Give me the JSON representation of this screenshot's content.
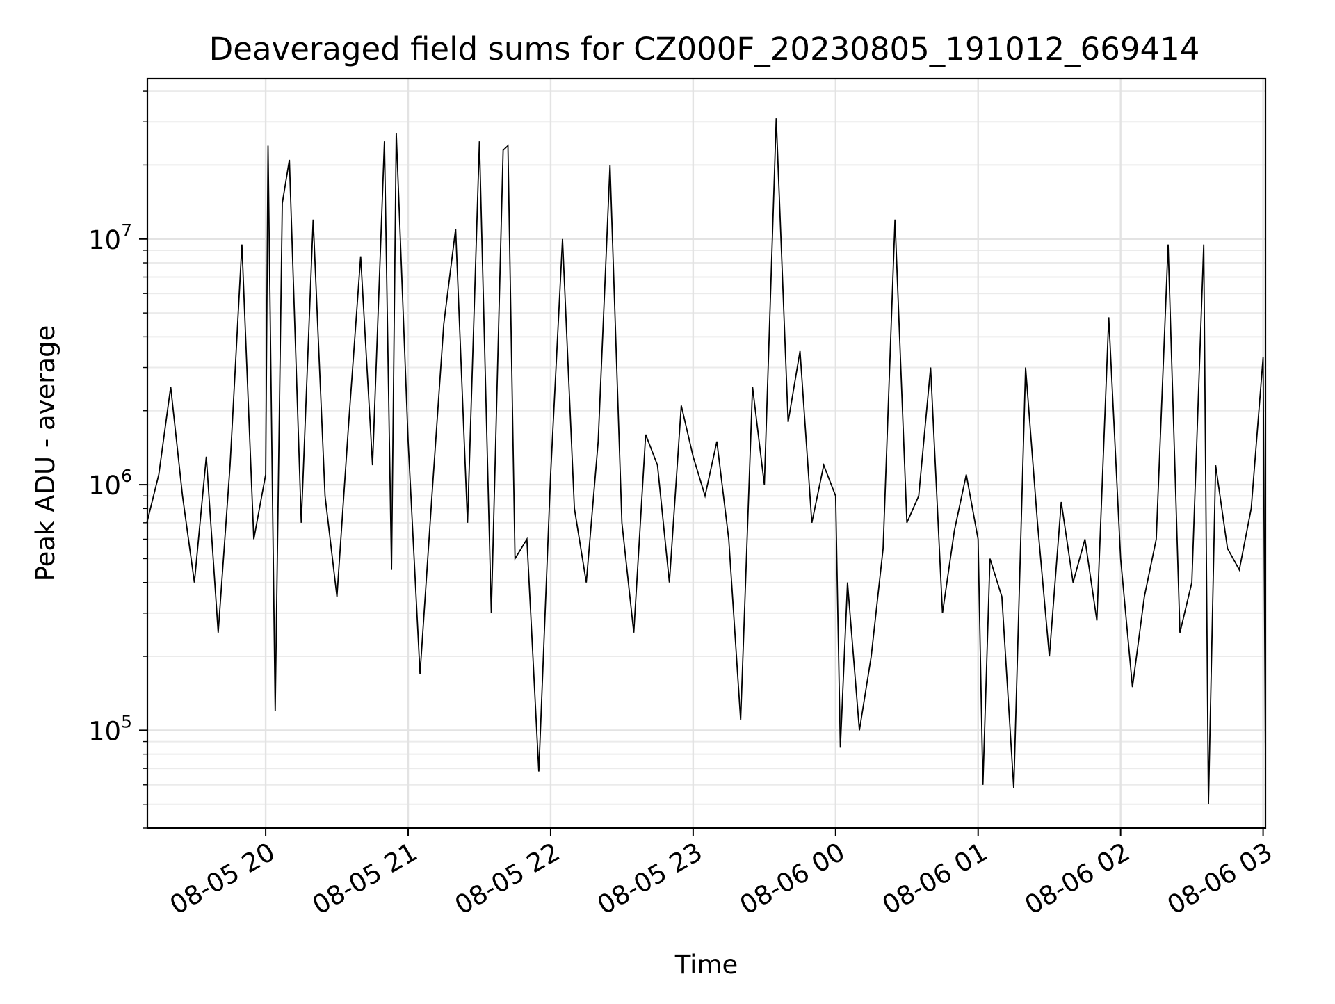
{
  "chart_data": {
    "type": "line",
    "title": "Deaveraged field sums for CZ000F_20230805_191012_669414",
    "xlabel": "Time",
    "ylabel": "Peak ADU - average",
    "y_scale": "log",
    "ylim": [
      40000,
      45000000
    ],
    "xlim": [
      "2023-08-05 19:10:12",
      "2023-08-06 03:01:00"
    ],
    "grid": true,
    "legend": "none",
    "line_color": "#000000",
    "x_ticks": [
      {
        "label": "08-05 20",
        "value": "2023-08-05 20:00"
      },
      {
        "label": "08-05 21",
        "value": "2023-08-05 21:00"
      },
      {
        "label": "08-05 22",
        "value": "2023-08-05 22:00"
      },
      {
        "label": "08-05 23",
        "value": "2023-08-05 23:00"
      },
      {
        "label": "08-06 00",
        "value": "2023-08-06 00:00"
      },
      {
        "label": "08-06 01",
        "value": "2023-08-06 01:00"
      },
      {
        "label": "08-06 02",
        "value": "2023-08-06 02:00"
      },
      {
        "label": "08-06 03",
        "value": "2023-08-06 03:00"
      }
    ],
    "y_ticks": [
      {
        "base": "10",
        "exp": "5",
        "value": 100000
      },
      {
        "base": "10",
        "exp": "6",
        "value": 1000000
      },
      {
        "base": "10",
        "exp": "7",
        "value": 10000000
      }
    ],
    "series": [
      {
        "values": [
          [
            "2023-08-05 19:10",
            700000
          ],
          [
            "2023-08-05 19:15",
            1100000
          ],
          [
            "2023-08-05 19:20",
            2500000
          ],
          [
            "2023-08-05 19:25",
            900000
          ],
          [
            "2023-08-05 19:30",
            400000
          ],
          [
            "2023-08-05 19:35",
            1300000
          ],
          [
            "2023-08-05 19:40",
            250000
          ],
          [
            "2023-08-05 19:45",
            1200000
          ],
          [
            "2023-08-05 19:50",
            9500000
          ],
          [
            "2023-08-05 19:55",
            600000
          ],
          [
            "2023-08-05 20:00",
            1100000
          ],
          [
            "2023-08-05 20:01",
            24000000
          ],
          [
            "2023-08-05 20:04",
            120000
          ],
          [
            "2023-08-05 20:07",
            14000000
          ],
          [
            "2023-08-05 20:10",
            21000000
          ],
          [
            "2023-08-05 20:15",
            700000
          ],
          [
            "2023-08-05 20:20",
            12000000
          ],
          [
            "2023-08-05 20:25",
            900000
          ],
          [
            "2023-08-05 20:30",
            350000
          ],
          [
            "2023-08-05 20:35",
            1800000
          ],
          [
            "2023-08-05 20:40",
            8500000
          ],
          [
            "2023-08-05 20:45",
            1200000
          ],
          [
            "2023-08-05 20:50",
            25000000
          ],
          [
            "2023-08-05 20:53",
            450000
          ],
          [
            "2023-08-05 20:55",
            27000000
          ],
          [
            "2023-08-05 21:00",
            1500000
          ],
          [
            "2023-08-05 21:05",
            170000
          ],
          [
            "2023-08-05 21:10",
            900000
          ],
          [
            "2023-08-05 21:15",
            4500000
          ],
          [
            "2023-08-05 21:20",
            11000000
          ],
          [
            "2023-08-05 21:25",
            700000
          ],
          [
            "2023-08-05 21:30",
            25000000
          ],
          [
            "2023-08-05 21:35",
            300000
          ],
          [
            "2023-08-05 21:40",
            23000000
          ],
          [
            "2023-08-05 21:42",
            24000000
          ],
          [
            "2023-08-05 21:45",
            500000
          ],
          [
            "2023-08-05 21:50",
            600000
          ],
          [
            "2023-08-05 21:55",
            68000
          ],
          [
            "2023-08-05 22:00",
            1100000
          ],
          [
            "2023-08-05 22:05",
            10000000
          ],
          [
            "2023-08-05 22:10",
            800000
          ],
          [
            "2023-08-05 22:15",
            400000
          ],
          [
            "2023-08-05 22:20",
            1500000
          ],
          [
            "2023-08-05 22:25",
            20000000
          ],
          [
            "2023-08-05 22:30",
            700000
          ],
          [
            "2023-08-05 22:35",
            250000
          ],
          [
            "2023-08-05 22:40",
            1600000
          ],
          [
            "2023-08-05 22:45",
            1200000
          ],
          [
            "2023-08-05 22:50",
            400000
          ],
          [
            "2023-08-05 22:55",
            2100000
          ],
          [
            "2023-08-05 23:00",
            1300000
          ],
          [
            "2023-08-05 23:05",
            900000
          ],
          [
            "2023-08-05 23:10",
            1500000
          ],
          [
            "2023-08-05 23:15",
            600000
          ],
          [
            "2023-08-05 23:20",
            110000
          ],
          [
            "2023-08-05 23:25",
            2500000
          ],
          [
            "2023-08-05 23:30",
            1000000
          ],
          [
            "2023-08-05 23:35",
            31000000
          ],
          [
            "2023-08-05 23:40",
            1800000
          ],
          [
            "2023-08-05 23:45",
            3500000
          ],
          [
            "2023-08-05 23:50",
            700000
          ],
          [
            "2023-08-05 23:55",
            1200000
          ],
          [
            "2023-08-06 00:00",
            900000
          ],
          [
            "2023-08-06 00:02",
            85000
          ],
          [
            "2023-08-06 00:05",
            400000
          ],
          [
            "2023-08-06 00:10",
            100000
          ],
          [
            "2023-08-06 00:15",
            200000
          ],
          [
            "2023-08-06 00:20",
            550000
          ],
          [
            "2023-08-06 00:25",
            12000000
          ],
          [
            "2023-08-06 00:30",
            700000
          ],
          [
            "2023-08-06 00:35",
            900000
          ],
          [
            "2023-08-06 00:40",
            3000000
          ],
          [
            "2023-08-06 00:45",
            300000
          ],
          [
            "2023-08-06 00:50",
            650000
          ],
          [
            "2023-08-06 00:55",
            1100000
          ],
          [
            "2023-08-06 01:00",
            600000
          ],
          [
            "2023-08-06 01:02",
            60000
          ],
          [
            "2023-08-06 01:05",
            500000
          ],
          [
            "2023-08-06 01:10",
            350000
          ],
          [
            "2023-08-06 01:15",
            58000
          ],
          [
            "2023-08-06 01:20",
            3000000
          ],
          [
            "2023-08-06 01:25",
            700000
          ],
          [
            "2023-08-06 01:30",
            200000
          ],
          [
            "2023-08-06 01:35",
            850000
          ],
          [
            "2023-08-06 01:40",
            400000
          ],
          [
            "2023-08-06 01:45",
            600000
          ],
          [
            "2023-08-06 01:50",
            280000
          ],
          [
            "2023-08-06 01:55",
            4800000
          ],
          [
            "2023-08-06 02:00",
            500000
          ],
          [
            "2023-08-06 02:05",
            150000
          ],
          [
            "2023-08-06 02:10",
            350000
          ],
          [
            "2023-08-06 02:15",
            600000
          ],
          [
            "2023-08-06 02:20",
            9500000
          ],
          [
            "2023-08-06 02:25",
            250000
          ],
          [
            "2023-08-06 02:30",
            400000
          ],
          [
            "2023-08-06 02:35",
            9500000
          ],
          [
            "2023-08-06 02:37",
            50000
          ],
          [
            "2023-08-06 02:40",
            1200000
          ],
          [
            "2023-08-06 02:45",
            550000
          ],
          [
            "2023-08-06 02:50",
            450000
          ],
          [
            "2023-08-06 02:55",
            800000
          ],
          [
            "2023-08-06 03:00",
            3300000
          ],
          [
            "2023-08-06 03:01",
            75000
          ]
        ]
      }
    ]
  }
}
